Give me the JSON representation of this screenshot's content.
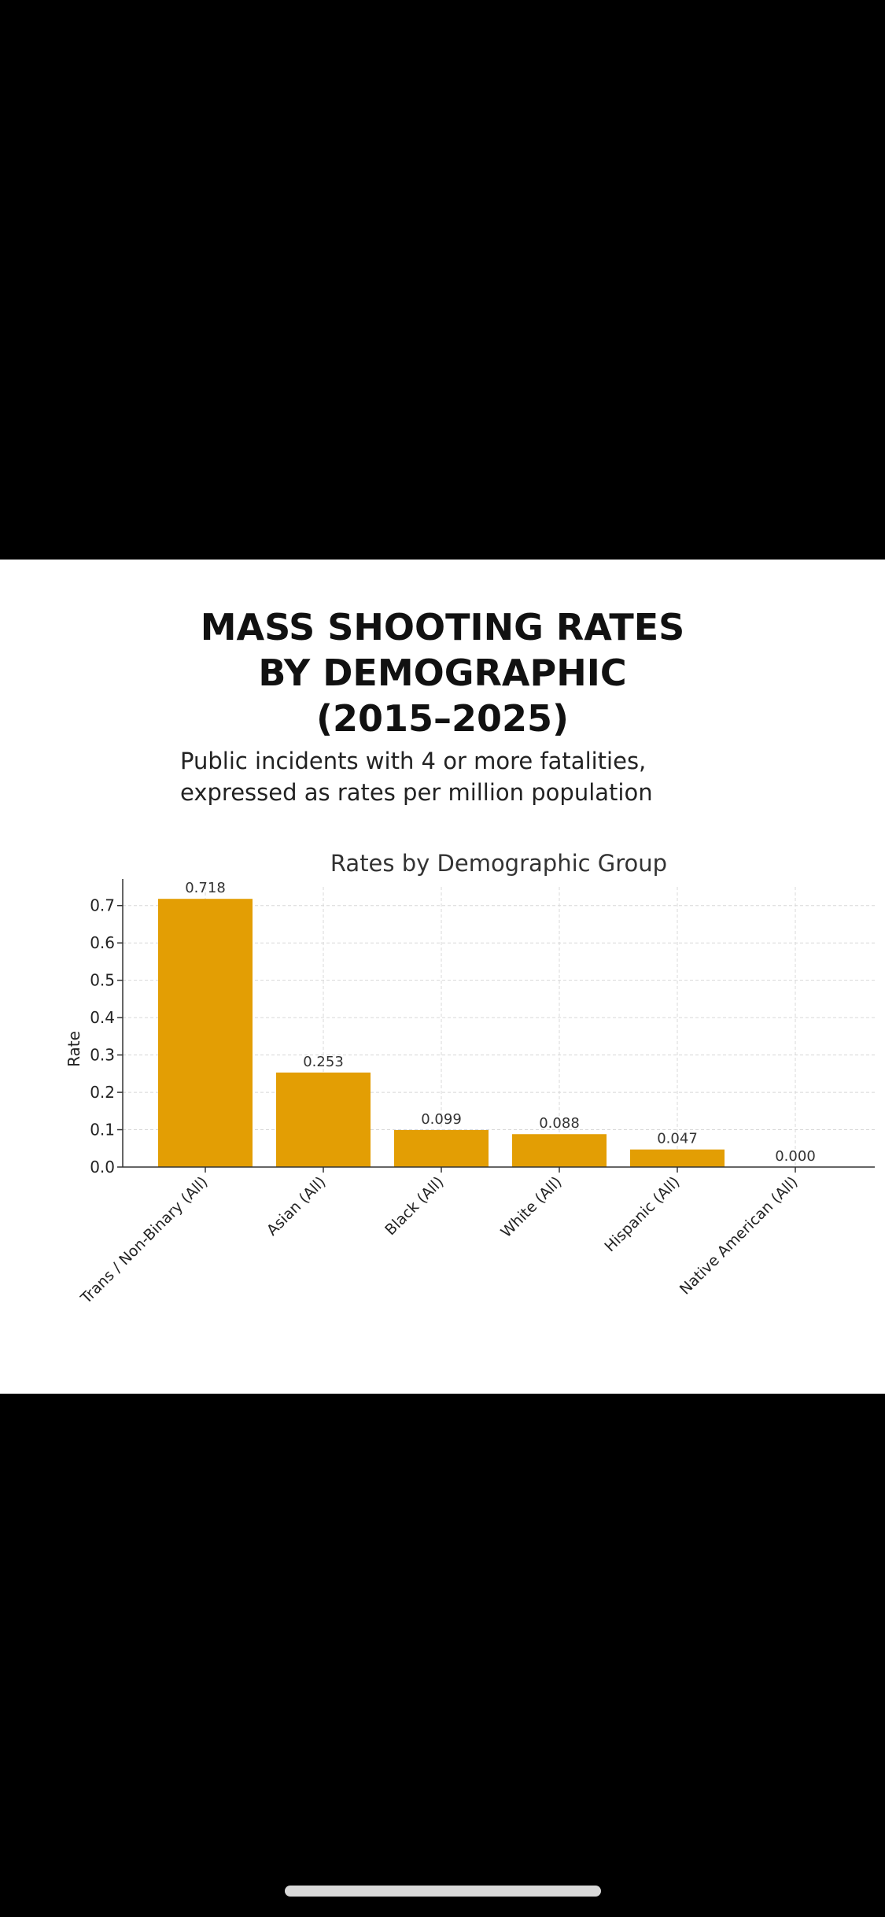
{
  "header": {
    "title_lines": [
      "MASS SHOOTING RATES",
      "BY DEMOGRAPHIC",
      "(2015–2025)"
    ],
    "subtitle_lines": [
      "Public incidents with 4 or more fatalities,",
      "expressed as rates per million population"
    ]
  },
  "chart_data": {
    "type": "bar",
    "title": "Rates by Demographic Group",
    "xlabel": "",
    "ylabel": "Rate",
    "categories": [
      "Trans / Non-Binary (All)",
      "Asian (All)",
      "Black (All)",
      "White (All)",
      "Hispanic (All)",
      "Native American (All)"
    ],
    "values": [
      0.718,
      0.253,
      0.099,
      0.088,
      0.047,
      0.0
    ],
    "value_labels": [
      "0.718",
      "0.253",
      "0.099",
      "0.088",
      "0.047",
      "0.000"
    ],
    "ylim": [
      0,
      0.75
    ],
    "yticks": [
      0.0,
      0.1,
      0.2,
      0.3,
      0.4,
      0.5,
      0.6,
      0.7
    ],
    "ytick_labels": [
      "0.0",
      "0.1",
      "0.2",
      "0.3",
      "0.4",
      "0.5",
      "0.6",
      "0.7"
    ],
    "grid": true,
    "bar_color": "#e39e04"
  }
}
